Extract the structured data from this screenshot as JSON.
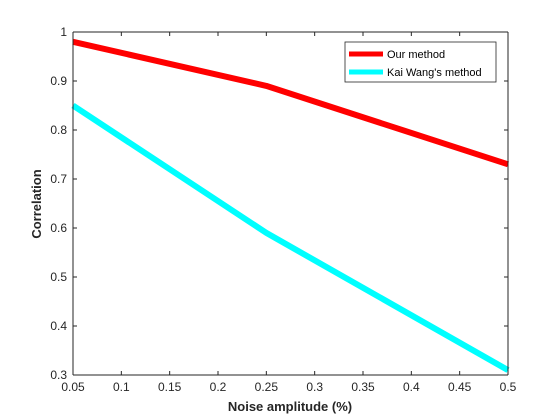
{
  "chart_data": {
    "type": "line",
    "title": "",
    "xlabel": "Noise amplitude (%)",
    "ylabel": "Correlation",
    "xlim": [
      0.05,
      0.5
    ],
    "ylim": [
      0.3,
      1
    ],
    "xticks": [
      "0.05",
      "0.1",
      "0.15",
      "0.2",
      "0.25",
      "0.3",
      "0.35",
      "0.4",
      "0.45",
      "0.5"
    ],
    "yticks": [
      "0.3",
      "0.4",
      "0.5",
      "0.6",
      "0.7",
      "0.8",
      "0.9",
      "1"
    ],
    "grid": false,
    "legend_position": "top-right",
    "series": [
      {
        "name": "Our method",
        "color": "#ff0000",
        "x": [
          0.05,
          0.25,
          0.5
        ],
        "y": [
          0.98,
          0.89,
          0.73
        ]
      },
      {
        "name": "Kai Wang's method",
        "color": "#00ffff",
        "x": [
          0.05,
          0.25,
          0.5
        ],
        "y": [
          0.85,
          0.59,
          0.31
        ]
      }
    ]
  }
}
